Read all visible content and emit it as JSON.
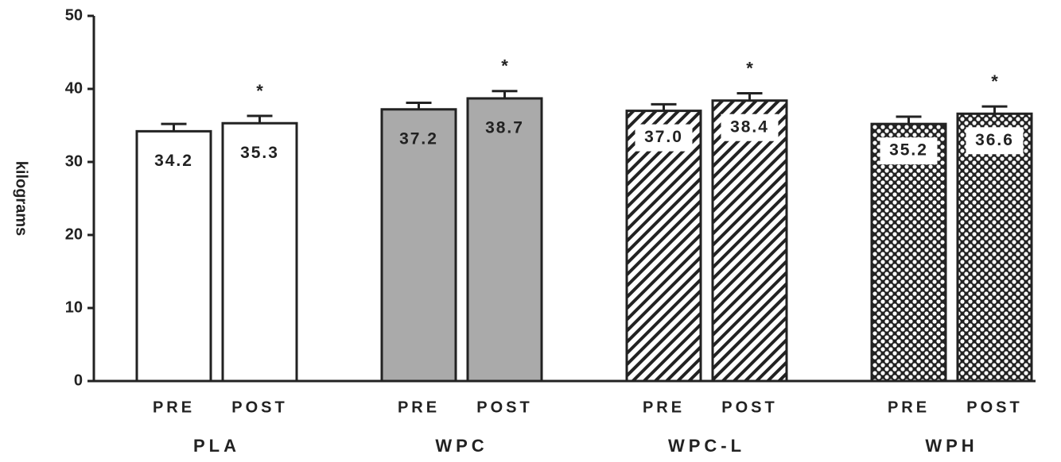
{
  "chart_data": {
    "type": "bar",
    "y_label": "kilograms",
    "groups": [
      {
        "name": "PLA",
        "fill": "plain",
        "color": "#ffffff"
      },
      {
        "name": "WPC",
        "fill": "plain",
        "color": "#aaaaaa"
      },
      {
        "name": "WPC-L",
        "fill": "hatch",
        "color": "#222222"
      },
      {
        "name": "WPH",
        "fill": "dots",
        "color": "#222222"
      }
    ],
    "categories": [
      "PRE",
      "POST",
      "PRE",
      "POST",
      "PRE",
      "POST",
      "PRE",
      "POST"
    ],
    "values": [
      34.2,
      35.3,
      37.2,
      38.7,
      37.0,
      38.4,
      35.2,
      36.6
    ],
    "value_labels": [
      "34.2",
      "35.3",
      "37.2",
      "38.7",
      "37.0",
      "38.4",
      "35.2",
      "36.6"
    ],
    "errors": [
      1.0,
      1.0,
      0.9,
      1.0,
      0.9,
      1.0,
      1.0,
      1.0
    ],
    "significance": [
      null,
      "*",
      null,
      "*",
      null,
      "*",
      null,
      "*"
    ],
    "ylim": [
      0,
      50
    ],
    "yticks": [
      0,
      10,
      20,
      30,
      40,
      50
    ]
  }
}
